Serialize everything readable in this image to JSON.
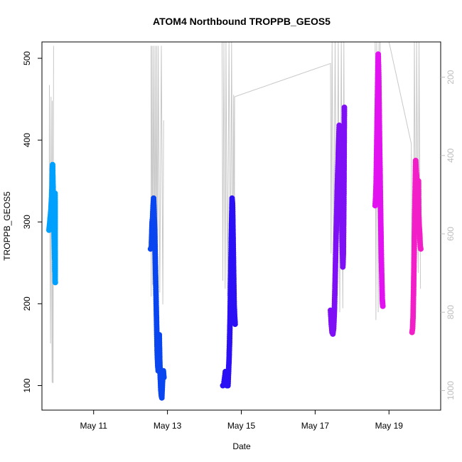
{
  "chart_data": {
    "type": "scatter",
    "title": "ATOM4 Northbound TROPPB_GEOS5",
    "xlabel": "Date",
    "ylabel": "TROPPB_GEOS5",
    "x_axis": {
      "type": "date",
      "range": [
        "2016-05-09T14:24",
        "2016-05-20T09:36"
      ],
      "ticks": [
        {
          "date": "2016-05-11",
          "label": "May 11"
        },
        {
          "date": "2016-05-13",
          "label": "May 13"
        },
        {
          "date": "2016-05-15",
          "label": "May 15"
        },
        {
          "date": "2016-05-17",
          "label": "May 17"
        },
        {
          "date": "2016-05-19",
          "label": "May 19"
        }
      ]
    },
    "y_axis": {
      "range": [
        70,
        520
      ],
      "ticks": [
        100,
        200,
        300,
        400,
        500
      ]
    },
    "y2_axis": {
      "reversed": true,
      "range": [
        1050,
        110
      ],
      "ticks": [
        200,
        400,
        600,
        800,
        1000
      ],
      "color": "#bdbdbd"
    },
    "grid": false,
    "legend": "none",
    "series": [
      {
        "color": "#00a0ff",
        "points": [
          [
            "2016-05-09T19:00",
            290
          ],
          [
            "2016-05-09T19:20",
            296
          ],
          [
            "2016-05-09T19:40",
            303
          ],
          [
            "2016-05-09T20:00",
            309
          ],
          [
            "2016-05-09T20:20",
            318
          ],
          [
            "2016-05-09T20:40",
            330
          ],
          [
            "2016-05-09T21:00",
            345
          ],
          [
            "2016-05-09T21:10",
            365
          ],
          [
            "2016-05-09T21:20",
            370
          ],
          [
            "2016-05-09T21:30",
            355
          ],
          [
            "2016-05-09T21:40",
            340
          ],
          [
            "2016-05-09T21:50",
            330
          ],
          [
            "2016-05-09T22:00",
            315
          ],
          [
            "2016-05-09T22:10",
            300
          ],
          [
            "2016-05-09T22:20",
            285
          ],
          [
            "2016-05-09T22:30",
            270
          ],
          [
            "2016-05-09T22:40",
            255
          ],
          [
            "2016-05-09T22:50",
            240
          ],
          [
            "2016-05-09T23:00",
            228
          ],
          [
            "2016-05-09T23:05",
            226
          ],
          [
            "2016-05-09T22:45",
            310
          ],
          [
            "2016-05-09T22:55",
            335
          ]
        ]
      },
      {
        "color": "#0a46f0",
        "points": [
          [
            "2016-05-12T13:00",
            267
          ],
          [
            "2016-05-12T13:30",
            268
          ],
          [
            "2016-05-12T14:00",
            300
          ],
          [
            "2016-05-12T14:20",
            305
          ],
          [
            "2016-05-12T14:40",
            320
          ],
          [
            "2016-05-12T15:00",
            329
          ],
          [
            "2016-05-12T15:20",
            310
          ],
          [
            "2016-05-12T15:40",
            290
          ],
          [
            "2016-05-12T16:00",
            260
          ],
          [
            "2016-05-12T16:20",
            230
          ],
          [
            "2016-05-12T16:40",
            200
          ],
          [
            "2016-05-12T17:00",
            170
          ],
          [
            "2016-05-12T17:20",
            140
          ],
          [
            "2016-05-12T17:40",
            125
          ],
          [
            "2016-05-12T18:00",
            118
          ],
          [
            "2016-05-12T18:20",
            150
          ],
          [
            "2016-05-12T18:40",
            162
          ],
          [
            "2016-05-12T19:00",
            130
          ],
          [
            "2016-05-12T19:20",
            110
          ],
          [
            "2016-05-12T19:40",
            95
          ],
          [
            "2016-05-12T20:00",
            88
          ],
          [
            "2016-05-12T20:20",
            85
          ],
          [
            "2016-05-12T20:40",
            100
          ],
          [
            "2016-05-12T21:00",
            112
          ],
          [
            "2016-05-12T21:20",
            118
          ],
          [
            "2016-05-12T21:40",
            110
          ]
        ]
      },
      {
        "color": "#2c10f5",
        "points": [
          [
            "2016-05-14T12:00",
            100
          ],
          [
            "2016-05-14T12:40",
            102
          ],
          [
            "2016-05-14T13:20",
            112
          ],
          [
            "2016-05-14T13:40",
            117
          ],
          [
            "2016-05-14T14:00",
            103
          ],
          [
            "2016-05-14T14:20",
            108
          ],
          [
            "2016-05-14T14:40",
            100
          ],
          [
            "2016-05-14T15:00",
            112
          ],
          [
            "2016-05-14T15:20",
            100
          ],
          [
            "2016-05-14T15:40",
            115
          ],
          [
            "2016-05-14T16:00",
            130
          ],
          [
            "2016-05-14T16:20",
            150
          ],
          [
            "2016-05-14T16:40",
            180
          ],
          [
            "2016-05-14T17:00",
            220
          ],
          [
            "2016-05-14T17:20",
            260
          ],
          [
            "2016-05-14T17:40",
            300
          ],
          [
            "2016-05-14T18:00",
            329
          ],
          [
            "2016-05-14T18:20",
            320
          ],
          [
            "2016-05-14T18:40",
            280
          ],
          [
            "2016-05-14T19:00",
            240
          ],
          [
            "2016-05-14T19:20",
            200
          ],
          [
            "2016-05-14T19:40",
            185
          ],
          [
            "2016-05-14T20:00",
            175
          ]
        ]
      },
      {
        "color": "#7f10f5",
        "points": [
          [
            "2016-05-17T10:00",
            192
          ],
          [
            "2016-05-17T10:30",
            175
          ],
          [
            "2016-05-17T11:00",
            165
          ],
          [
            "2016-05-17T11:30",
            163
          ],
          [
            "2016-05-17T12:00",
            170
          ],
          [
            "2016-05-17T12:30",
            190
          ],
          [
            "2016-05-17T13:00",
            230
          ],
          [
            "2016-05-17T13:30",
            275
          ],
          [
            "2016-05-17T14:00",
            310
          ],
          [
            "2016-05-17T14:30",
            350
          ],
          [
            "2016-05-17T15:00",
            380
          ],
          [
            "2016-05-17T15:20",
            400
          ],
          [
            "2016-05-17T15:40",
            418
          ],
          [
            "2016-05-17T16:00",
            410
          ],
          [
            "2016-05-17T16:20",
            385
          ],
          [
            "2016-05-17T16:40",
            360
          ],
          [
            "2016-05-17T17:00",
            330
          ],
          [
            "2016-05-17T17:20",
            300
          ],
          [
            "2016-05-17T17:40",
            270
          ],
          [
            "2016-05-17T18:00",
            245
          ],
          [
            "2016-05-17T18:20",
            262
          ],
          [
            "2016-05-17T18:40",
            325
          ],
          [
            "2016-05-17T18:50",
            380
          ],
          [
            "2016-05-17T19:00",
            440
          ]
        ]
      },
      {
        "color": "#e213f0",
        "points": [
          [
            "2016-05-18T15:00",
            320
          ],
          [
            "2016-05-18T15:20",
            330
          ],
          [
            "2016-05-18T15:40",
            350
          ],
          [
            "2016-05-18T16:00",
            390
          ],
          [
            "2016-05-18T16:20",
            430
          ],
          [
            "2016-05-18T16:40",
            470
          ],
          [
            "2016-05-18T17:00",
            505
          ],
          [
            "2016-05-18T17:20",
            480
          ],
          [
            "2016-05-18T17:40",
            430
          ],
          [
            "2016-05-18T18:00",
            380
          ],
          [
            "2016-05-18T18:20",
            340
          ],
          [
            "2016-05-18T18:40",
            300
          ],
          [
            "2016-05-18T19:00",
            260
          ],
          [
            "2016-05-18T19:20",
            230
          ],
          [
            "2016-05-18T19:40",
            205
          ],
          [
            "2016-05-18T20:00",
            197
          ],
          [
            "2016-05-18T18:10",
            365
          ],
          [
            "2016-05-18T18:30",
            320
          ]
        ]
      },
      {
        "color": "#f21fc8",
        "points": [
          [
            "2016-05-19T15:00",
            165
          ],
          [
            "2016-05-19T15:20",
            170
          ],
          [
            "2016-05-19T15:40",
            185
          ],
          [
            "2016-05-19T16:00",
            220
          ],
          [
            "2016-05-19T16:20",
            260
          ],
          [
            "2016-05-19T16:40",
            300
          ],
          [
            "2016-05-19T17:00",
            340
          ],
          [
            "2016-05-19T17:20",
            375
          ],
          [
            "2016-05-19T17:40",
            365
          ],
          [
            "2016-05-19T18:00",
            355
          ],
          [
            "2016-05-19T18:20",
            345
          ],
          [
            "2016-05-19T18:40",
            330
          ],
          [
            "2016-05-19T19:00",
            320
          ],
          [
            "2016-05-19T19:20",
            310
          ],
          [
            "2016-05-19T19:40",
            295
          ],
          [
            "2016-05-19T20:00",
            285
          ],
          [
            "2016-05-19T20:20",
            270
          ],
          [
            "2016-05-19T20:40",
            267
          ],
          [
            "2016-05-19T19:10",
            350
          ],
          [
            "2016-05-19T18:50",
            300
          ]
        ]
      }
    ],
    "secondary_series": {
      "color": "#c8c8c8",
      "lines": [
        [
          [
            "2016-05-09T19:10",
            530
          ],
          [
            "2016-05-09T19:15",
            220
          ],
          [
            "2016-05-09T19:40",
            660
          ],
          [
            "2016-05-09T20:00",
            880
          ],
          [
            "2016-05-09T20:20",
            250
          ],
          [
            "2016-05-09T21:00",
            980
          ],
          [
            "2016-05-09T21:10",
            260
          ],
          [
            "2016-05-09T21:30",
            980
          ],
          [
            "2016-05-09T21:40",
            980
          ],
          [
            "2016-05-09T22:00",
            120
          ]
        ],
        [
          [
            "2016-05-12T13:20",
            120
          ],
          [
            "2016-05-12T13:25",
            760
          ],
          [
            "2016-05-12T14:00",
            120
          ],
          [
            "2016-05-12T14:20",
            730
          ],
          [
            "2016-05-12T15:00",
            120
          ],
          [
            "2016-05-12T15:30",
            700
          ],
          [
            "2016-05-12T16:00",
            120
          ],
          [
            "2016-05-12T16:30",
            740
          ],
          [
            "2016-05-12T17:00",
            120
          ],
          [
            "2016-05-12T17:30",
            720
          ],
          [
            "2016-05-12T18:00",
            120
          ],
          [
            "2016-05-12T19:00",
            750
          ],
          [
            "2016-05-12T20:00",
            120
          ],
          [
            "2016-05-12T21:00",
            780
          ],
          [
            "2016-05-12T21:30",
            310
          ]
        ],
        [
          [
            "2016-05-13T21:30",
            110
          ]
        ],
        [
          [
            "2016-05-14T11:30",
            110
          ],
          [
            "2016-05-14T12:00",
            720
          ],
          [
            "2016-05-14T12:40",
            110
          ],
          [
            "2016-05-14T13:30",
            740
          ],
          [
            "2016-05-14T14:00",
            110
          ],
          [
            "2016-05-14T15:00",
            760
          ],
          [
            "2016-05-14T16:00",
            110
          ],
          [
            "2016-05-14T17:00",
            720
          ],
          [
            "2016-05-14T17:40",
            110
          ],
          [
            "2016-05-14T18:30",
            700
          ],
          [
            "2016-05-14T19:00",
            245
          ],
          [
            "2016-05-14T19:30",
            660
          ]
        ],
        [
          [
            "2016-05-14T19:30",
            600
          ],
          [
            "2016-05-14T19:40",
            250
          ],
          [
            "2016-05-17T10:00",
            165
          ],
          [
            "2016-05-17T10:20",
            650
          ],
          [
            "2016-05-17T11:00",
            110
          ],
          [
            "2016-05-17T12:00",
            700
          ],
          [
            "2016-05-17T13:00",
            110
          ],
          [
            "2016-05-17T14:00",
            760
          ],
          [
            "2016-05-17T15:00",
            110
          ],
          [
            "2016-05-17T16:00",
            800
          ],
          [
            "2016-05-17T17:00",
            110
          ],
          [
            "2016-05-17T18:00",
            790
          ],
          [
            "2016-05-17T18:40",
            110
          ],
          [
            "2016-05-17T19:10",
            660
          ]
        ],
        [
          [
            "2016-05-18T15:00",
            110
          ],
          [
            "2016-05-18T15:30",
            820
          ],
          [
            "2016-05-18T16:00",
            110
          ],
          [
            "2016-05-18T17:00",
            800
          ],
          [
            "2016-05-18T17:30",
            110
          ],
          [
            "2016-05-18T18:00",
            780
          ],
          [
            "2016-05-18T18:20",
            110
          ]
        ],
        [
          [
            "2016-05-19T00:00",
            110
          ],
          [
            "2016-05-19T14:30",
            370
          ],
          [
            "2016-05-19T15:00",
            850
          ],
          [
            "2016-05-19T16:00",
            700
          ],
          [
            "2016-05-19T16:30",
            110
          ],
          [
            "2016-05-19T17:30",
            760
          ],
          [
            "2016-05-19T18:00",
            110
          ],
          [
            "2016-05-19T19:00",
            700
          ],
          [
            "2016-05-19T19:30",
            110
          ],
          [
            "2016-05-19T20:30",
            740
          ]
        ]
      ]
    }
  }
}
